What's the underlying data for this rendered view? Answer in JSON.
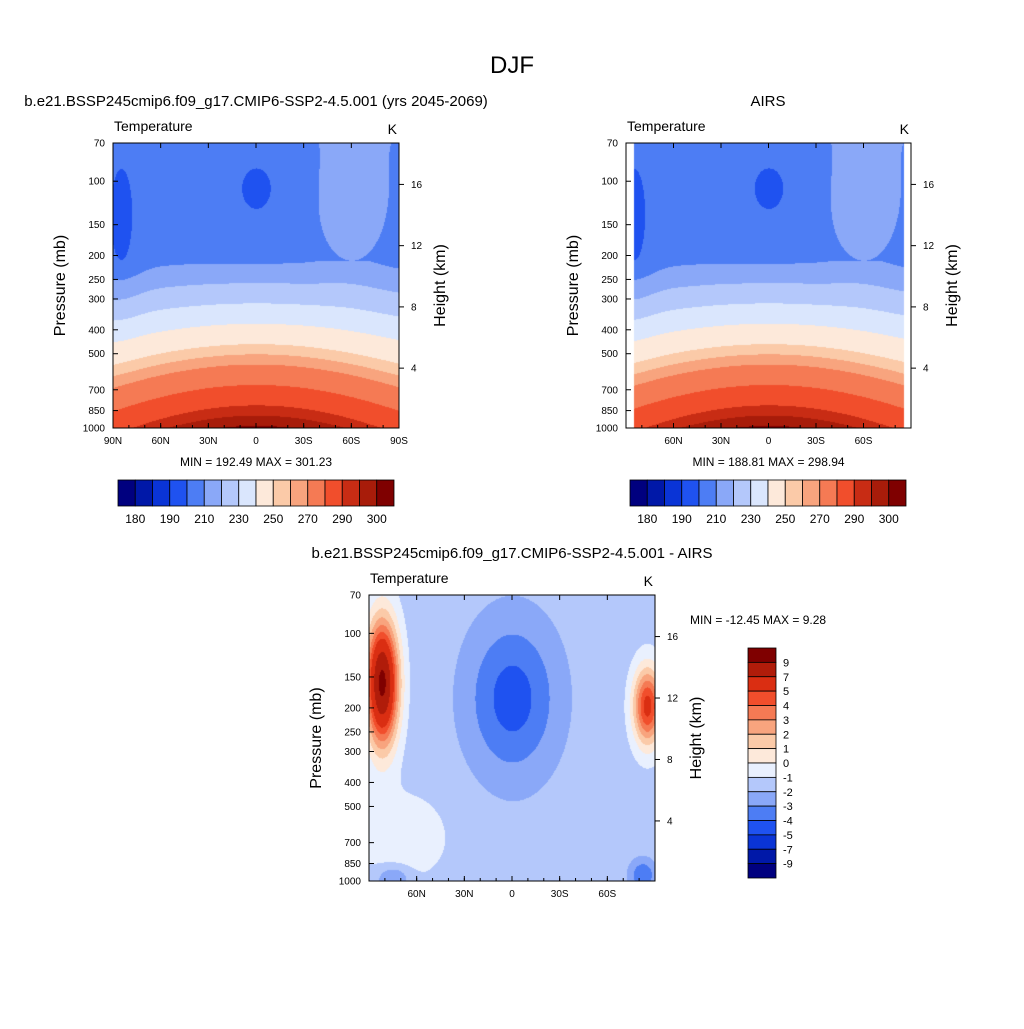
{
  "figure_title": "DJF",
  "chart_data": [
    {
      "type": "heatmap",
      "title": "b.e21.BSSP245cmip6.f09_g17.CMIP6-SSP2-4.5.001 (yrs 2045-2069)",
      "left_label": "Temperature",
      "units": "K",
      "ylabel": "Pressure (mb)",
      "ylabel_right": "Height (km)",
      "x_ticks": [
        "90N",
        "60N",
        "30N",
        "0",
        "30S",
        "60S",
        "90S"
      ],
      "x_tick_lat": [
        90,
        60,
        30,
        0,
        -30,
        -60,
        -90
      ],
      "y_ticks": [
        "70",
        "100",
        "150",
        "200",
        "250",
        "300",
        "400",
        "500",
        "700",
        "850",
        "1000"
      ],
      "y_tick_p": [
        70,
        100,
        150,
        200,
        250,
        300,
        400,
        500,
        700,
        850,
        1000
      ],
      "height_ticks": [
        "16",
        "12",
        "8",
        "4"
      ],
      "height_tick_km": [
        16,
        12,
        8,
        4
      ],
      "stats": "MIN = 192.49  MAX = 301.23",
      "min": 192.49,
      "max": 301.23,
      "xlim": [
        90,
        -90
      ],
      "ylim": [
        1000,
        70
      ],
      "colorbar_labels": [
        "180",
        "190",
        "210",
        "230",
        "250",
        "270",
        "290",
        "300"
      ]
    },
    {
      "type": "heatmap",
      "title": "AIRS",
      "left_label": "Temperature",
      "units": "K",
      "ylabel": "Pressure (mb)",
      "ylabel_right": "Height (km)",
      "x_ticks": [
        "60N",
        "30N",
        "0",
        "30S",
        "60S"
      ],
      "x_tick_lat": [
        60,
        30,
        0,
        -30,
        -60
      ],
      "y_ticks": [
        "70",
        "100",
        "150",
        "200",
        "250",
        "300",
        "400",
        "500",
        "700",
        "850",
        "1000"
      ],
      "y_tick_p": [
        70,
        100,
        150,
        200,
        250,
        300,
        400,
        500,
        700,
        850,
        1000
      ],
      "height_ticks": [
        "16",
        "12",
        "8",
        "4"
      ],
      "height_tick_km": [
        16,
        12,
        8,
        4
      ],
      "stats": "MIN = 188.81  MAX = 298.94",
      "min": 188.81,
      "max": 298.94,
      "xlim": [
        90,
        -90
      ],
      "ylim": [
        1000,
        70
      ],
      "colorbar_labels": [
        "180",
        "190",
        "210",
        "230",
        "250",
        "270",
        "290",
        "300"
      ]
    },
    {
      "type": "heatmap",
      "title": "b.e21.BSSP245cmip6.f09_g17.CMIP6-SSP2-4.5.001 - AIRS",
      "left_label": "Temperature",
      "units": "K",
      "ylabel": "Pressure (mb)",
      "ylabel_right": "Height (km)",
      "x_ticks": [
        "60N",
        "30N",
        "0",
        "30S",
        "60S"
      ],
      "x_tick_lat": [
        60,
        30,
        0,
        -30,
        -60
      ],
      "y_ticks": [
        "70",
        "100",
        "150",
        "200",
        "250",
        "300",
        "400",
        "500",
        "700",
        "850",
        "1000"
      ],
      "y_tick_p": [
        70,
        100,
        150,
        200,
        250,
        300,
        400,
        500,
        700,
        850,
        1000
      ],
      "height_ticks": [
        "16",
        "12",
        "8",
        "4"
      ],
      "height_tick_km": [
        16,
        12,
        8,
        4
      ],
      "stats": "MIN = -12.45  MAX =   9.28",
      "min": -12.45,
      "max": 9.28,
      "xlim": [
        90,
        -90
      ],
      "ylim": [
        1000,
        70
      ],
      "colorbar_labels": [
        "9",
        "7",
        "5",
        "4",
        "3",
        "2",
        "1",
        "0",
        "-1",
        "-2",
        "-3",
        "-4",
        "-5",
        "-7",
        "-9"
      ]
    }
  ],
  "colorbars": {
    "abs_colors": [
      "#00007f",
      "#0018a8",
      "#0a34d6",
      "#1f52f0",
      "#4d7df4",
      "#8aa8f8",
      "#b4c8fb",
      "#dae6fd",
      "#fde9da",
      "#fbcaa8",
      "#f8a47e",
      "#f57a54",
      "#f14e2c",
      "#c82c14",
      "#a81c0a",
      "#7f0000"
    ],
    "diff_colors": [
      "#7f0000",
      "#b01c0a",
      "#da2e12",
      "#f14e2c",
      "#f57a54",
      "#f8a47e",
      "#fbcaa8",
      "#fde9da",
      "#e9f0fe",
      "#b4c8fb",
      "#8aa8f8",
      "#4d7df4",
      "#1f52f0",
      "#0a34d6",
      "#0018a8",
      "#00007f"
    ]
  }
}
